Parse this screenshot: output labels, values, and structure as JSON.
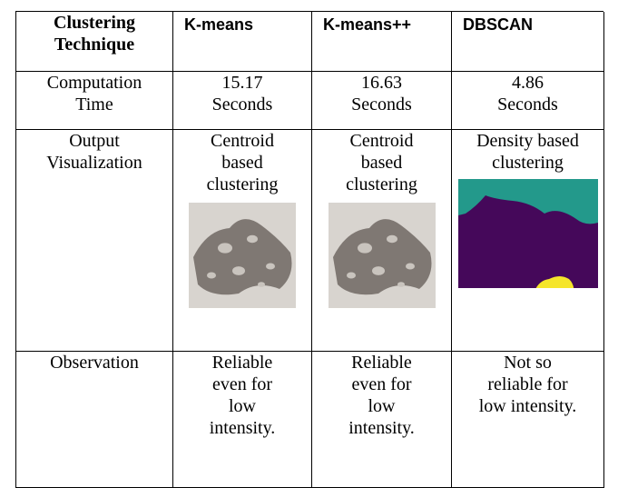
{
  "table": {
    "header": [
      [
        "Clustering",
        "Technique"
      ],
      [
        "K-means"
      ],
      [
        "K-means++"
      ],
      [
        "DBSCAN"
      ]
    ],
    "rows": [
      [
        [
          "Computation",
          "Time"
        ],
        [
          "15.17",
          "Seconds"
        ],
        [
          "16.63",
          "Seconds"
        ],
        [
          "4.86",
          "Seconds"
        ]
      ],
      [
        [
          "Output",
          "Visualization"
        ],
        [
          "Centroid",
          "based",
          "clustering"
        ],
        [
          "Centroid",
          "based",
          "clustering"
        ],
        [
          "Density based",
          "clustering"
        ]
      ],
      [
        [
          "Observation"
        ],
        [
          "Reliable",
          "even for",
          "low",
          "intensity."
        ],
        [
          "Reliable",
          "even for",
          "low",
          "intensity."
        ],
        [
          "Not so",
          "reliable for",
          "low intensity."
        ]
      ]
    ]
  }
}
